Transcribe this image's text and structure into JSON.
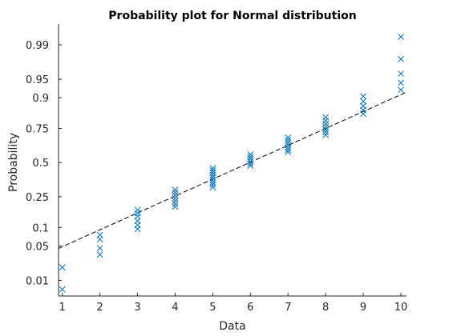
{
  "chart_data": {
    "type": "scatter",
    "title": "Probability plot for Normal distribution",
    "xlabel": "Data",
    "ylabel": "Probability",
    "y_scale": "normal-probability",
    "xlim": [
      0.9,
      10.15
    ],
    "ylim": [
      0.0042,
      0.9969
    ],
    "x_ticks": [
      1,
      2,
      3,
      4,
      5,
      6,
      7,
      8,
      9,
      10
    ],
    "y_ticks": [
      0.01,
      0.05,
      0.1,
      0.25,
      0.5,
      0.75,
      0.9,
      0.95,
      0.99
    ],
    "y_tick_labels": [
      "0.01",
      "0.05",
      "0.1",
      "0.25",
      "0.5",
      "0.75",
      "0.9",
      "0.95",
      "0.99"
    ],
    "marker": "x",
    "marker_color": "#0072BD",
    "fit_line_color": "#000000",
    "fit_line_style": "dashed",
    "fit_line": {
      "x": [
        0.9,
        10.15
      ],
      "y": [
        0.045,
        0.918
      ]
    },
    "grid": false,
    "legend": "none",
    "points": [
      {
        "x": 1,
        "y": [
          0.0061,
          0.0192
        ]
      },
      {
        "x": 2,
        "y": [
          0.0345,
          0.0455,
          0.0645,
          0.0765
        ]
      },
      {
        "x": 3,
        "y": [
          0.0945,
          0.1085,
          0.1245,
          0.1435,
          0.1585,
          0.1745
        ]
      },
      {
        "x": 4,
        "y": [
          0.1915,
          0.2075,
          0.2235,
          0.2415,
          0.2595,
          0.2775,
          0.2965
        ]
      },
      {
        "x": 5,
        "y": [
          0.3125,
          0.3305,
          0.3475,
          0.3665,
          0.3855,
          0.4025,
          0.4205,
          0.4385,
          0.4565
        ]
      },
      {
        "x": 6,
        "y": [
          0.4745,
          0.4915,
          0.5095,
          0.5275,
          0.5455,
          0.5635
        ]
      },
      {
        "x": 7,
        "y": [
          0.5825,
          0.5995,
          0.6175,
          0.6355,
          0.6535,
          0.6715,
          0.6895
        ]
      },
      {
        "x": 8,
        "y": [
          0.7075,
          0.7255,
          0.7425,
          0.7605,
          0.7785,
          0.7965,
          0.8145
        ]
      },
      {
        "x": 9,
        "y": [
          0.8325,
          0.8505,
          0.8685,
          0.8865,
          0.9045
        ]
      },
      {
        "x": 10,
        "y": [
          0.9245,
          0.9425,
          0.9605,
          0.9795,
          0.9935
        ]
      }
    ]
  }
}
